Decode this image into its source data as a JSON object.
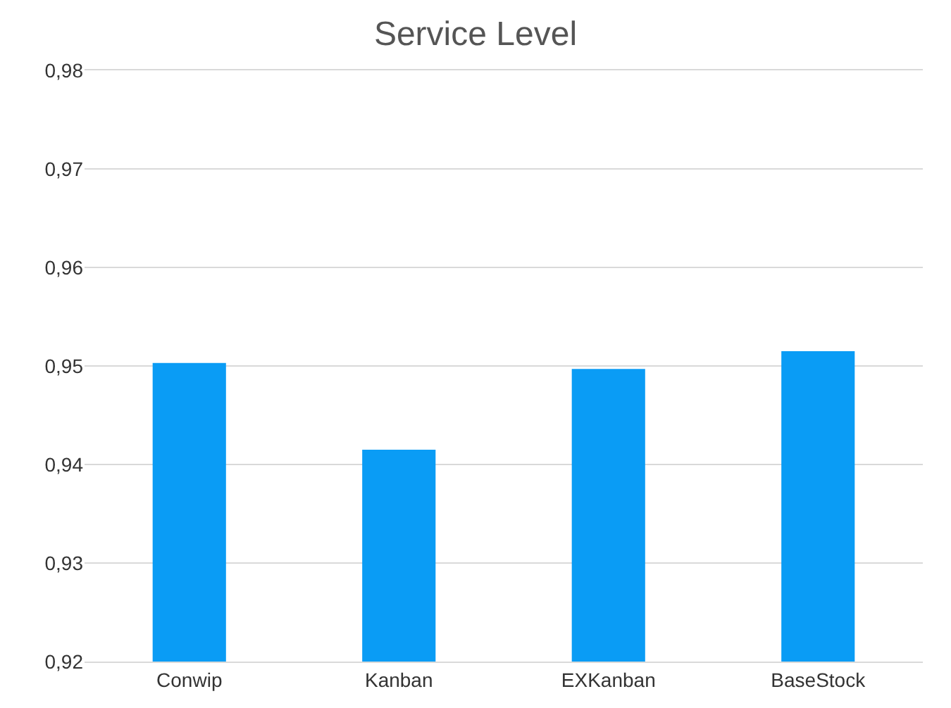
{
  "chart_data": {
    "type": "bar",
    "title": "Service Level",
    "categories": [
      "Conwip",
      "Kanban",
      "EXKanban",
      "BaseStock"
    ],
    "values": [
      0.9503,
      0.9415,
      0.9497,
      0.9515
    ],
    "color": "#0a9cf5",
    "ylim": [
      0.92,
      0.98
    ],
    "yticks": [
      {
        "value": 0.92,
        "label": "0,92"
      },
      {
        "value": 0.93,
        "label": "0,93"
      },
      {
        "value": 0.94,
        "label": "0,94"
      },
      {
        "value": 0.95,
        "label": "0,95"
      },
      {
        "value": 0.96,
        "label": "0,96"
      },
      {
        "value": 0.97,
        "label": "0,97"
      },
      {
        "value": 0.98,
        "label": "0,98"
      }
    ],
    "grid": "y"
  }
}
